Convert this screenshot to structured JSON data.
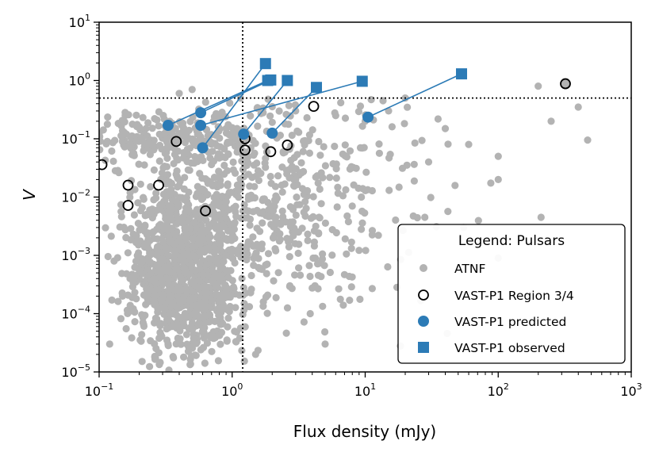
{
  "chart_data": {
    "type": "scatter",
    "title": "",
    "xlabel": "Flux density (mJy)",
    "ylabel": "V",
    "xscale": "log",
    "yscale": "log",
    "xlim": [
      0.1,
      1000
    ],
    "ylim": [
      1e-05,
      10
    ],
    "x_ticks": [
      {
        "base": "10",
        "exp": "−1",
        "value": 0.1
      },
      {
        "base": "10",
        "exp": "0",
        "value": 1
      },
      {
        "base": "10",
        "exp": "1",
        "value": 10
      },
      {
        "base": "10",
        "exp": "2",
        "value": 100
      },
      {
        "base": "10",
        "exp": "3",
        "value": 1000
      }
    ],
    "y_ticks": [
      {
        "base": "10",
        "exp": "−5",
        "value": 1e-05
      },
      {
        "base": "10",
        "exp": "−4",
        "value": 0.0001
      },
      {
        "base": "10",
        "exp": "−3",
        "value": 0.001
      },
      {
        "base": "10",
        "exp": "−2",
        "value": 0.01
      },
      {
        "base": "10",
        "exp": "−1",
        "value": 0.1
      },
      {
        "base": "10",
        "exp": "0",
        "value": 1
      },
      {
        "base": "10",
        "exp": "1",
        "value": 10
      }
    ],
    "grid": false,
    "threshold_lines": {
      "x": 1.2,
      "y": 0.5,
      "style": "dotted",
      "color": "#000000"
    },
    "legend": {
      "title": "Legend: Pulsars",
      "placement": "lower-right",
      "entries": [
        "ATNF",
        "VAST-P1 Region 3/4",
        "VAST-P1 predicted",
        "VAST-P1 observed"
      ]
    },
    "colors": {
      "atnf": "#b3b3b3",
      "vast": "#2c7bb6",
      "region_edge": "#000000"
    },
    "atnf_cloud": {
      "count": 1800,
      "note_center_x": 0.5,
      "note_center_y": 0.0004,
      "highlights": [
        [
          0.4,
          0.6
        ],
        [
          0.5,
          0.7
        ],
        [
          0.35,
          0.13
        ],
        [
          0.55,
          0.12
        ],
        [
          0.9,
          0.15
        ],
        [
          2.5,
          0.18
        ],
        [
          3,
          0.3
        ],
        [
          6,
          0.25
        ],
        [
          10,
          0.2
        ],
        [
          15,
          0.3
        ],
        [
          20,
          0.5
        ],
        [
          40,
          0.15
        ],
        [
          60,
          0.08
        ],
        [
          100,
          0.05
        ],
        [
          200,
          0.8
        ],
        [
          250,
          0.2
        ],
        [
          400,
          0.35
        ],
        [
          470,
          0.095
        ],
        [
          100,
          0.0009
        ],
        [
          55,
          0.003
        ],
        [
          210,
          0.0045
        ],
        [
          100,
          0.02
        ],
        [
          3,
          0.02
        ],
        [
          8,
          0.007
        ],
        [
          30,
          0.04
        ],
        [
          0.15,
          0.0002
        ],
        [
          0.12,
          3e-05
        ],
        [
          1.5,
          2e-05
        ],
        [
          5,
          3e-05
        ]
      ]
    },
    "series": [
      {
        "name": "VAST-P1 Region 3/4",
        "marker": "open-circle",
        "x": [
          0.105,
          0.165,
          0.165,
          0.28,
          0.38,
          0.63,
          1.25,
          1.25,
          1.95,
          2.6,
          4.1,
          320
        ],
        "y": [
          0.036,
          0.016,
          0.0072,
          0.016,
          0.09,
          0.0058,
          0.1,
          0.064,
          0.06,
          0.078,
          0.36,
          0.88
        ]
      },
      {
        "name": "VAST-P1 predicted",
        "marker": "filled-circle",
        "x": [
          0.33,
          0.58,
          0.58,
          0.6,
          1.22,
          2.0,
          10.5
        ],
        "y": [
          0.17,
          0.28,
          0.17,
          0.07,
          0.12,
          0.125,
          0.235
        ]
      },
      {
        "name": "VAST-P1 observed",
        "marker": "filled-square",
        "x": [
          1.78,
          1.85,
          1.95,
          2.6,
          4.3,
          9.5,
          53
        ],
        "y": [
          1.95,
          1.0,
          1.02,
          1.0,
          0.76,
          0.97,
          1.3
        ]
      }
    ],
    "links": [
      {
        "from": [
          0.33,
          0.17
        ],
        "to": [
          1.85,
          1.0
        ]
      },
      {
        "from": [
          0.58,
          0.28
        ],
        "to": [
          1.95,
          1.02
        ]
      },
      {
        "from": [
          0.58,
          0.17
        ],
        "to": [
          9.5,
          0.97
        ]
      },
      {
        "from": [
          0.6,
          0.07
        ],
        "to": [
          1.78,
          1.95
        ]
      },
      {
        "from": [
          1.22,
          0.12
        ],
        "to": [
          2.6,
          1.0
        ]
      },
      {
        "from": [
          2.0,
          0.125
        ],
        "to": [
          4.3,
          0.76
        ]
      },
      {
        "from": [
          10.5,
          0.235
        ],
        "to": [
          53,
          1.3
        ]
      }
    ]
  }
}
